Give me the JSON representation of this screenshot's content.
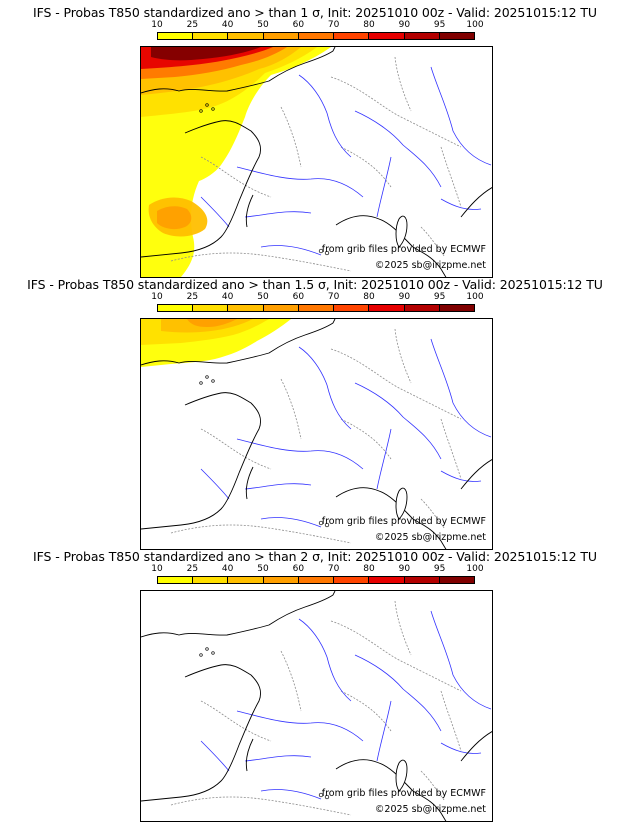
{
  "colorbar": {
    "ticks": [
      "10",
      "25",
      "40",
      "50",
      "60",
      "70",
      "80",
      "90",
      "95",
      "100"
    ],
    "colors": [
      "#ffff00",
      "#ffdf00",
      "#ffbf00",
      "#ff9f00",
      "#ff7700",
      "#ff4400",
      "#e60000",
      "#b30000",
      "#800000"
    ]
  },
  "panels": [
    {
      "title": "IFS - Probas T850  standardized ano > than 1 σ, Init: 20251010 00z - Valid: 20251015:12 TU",
      "source_credit": "from grib files provided by ECMWF",
      "copyright": "©2025 sb@irizpme.net",
      "anomaly_level": "high"
    },
    {
      "title": "IFS - Probas T850  standardized ano > than 1.5 σ, Init: 20251010 00z - Valid: 20251015:12 TU",
      "source_credit": "from grib files provided by ECMWF",
      "copyright": "©2025 sb@irizpme.net",
      "anomaly_level": "medium"
    },
    {
      "title": "IFS - Probas T850  standardized ano > than 2 σ, Init: 20251010 00z - Valid: 20251015:12 TU",
      "source_credit": "from grib files provided by ECMWF",
      "copyright": "©2025 sb@irizpme.net",
      "anomaly_level": "none"
    }
  ],
  "colors": {
    "coast": "#000000",
    "rivers": "#3333ff",
    "borders": "#8c8c8c"
  }
}
